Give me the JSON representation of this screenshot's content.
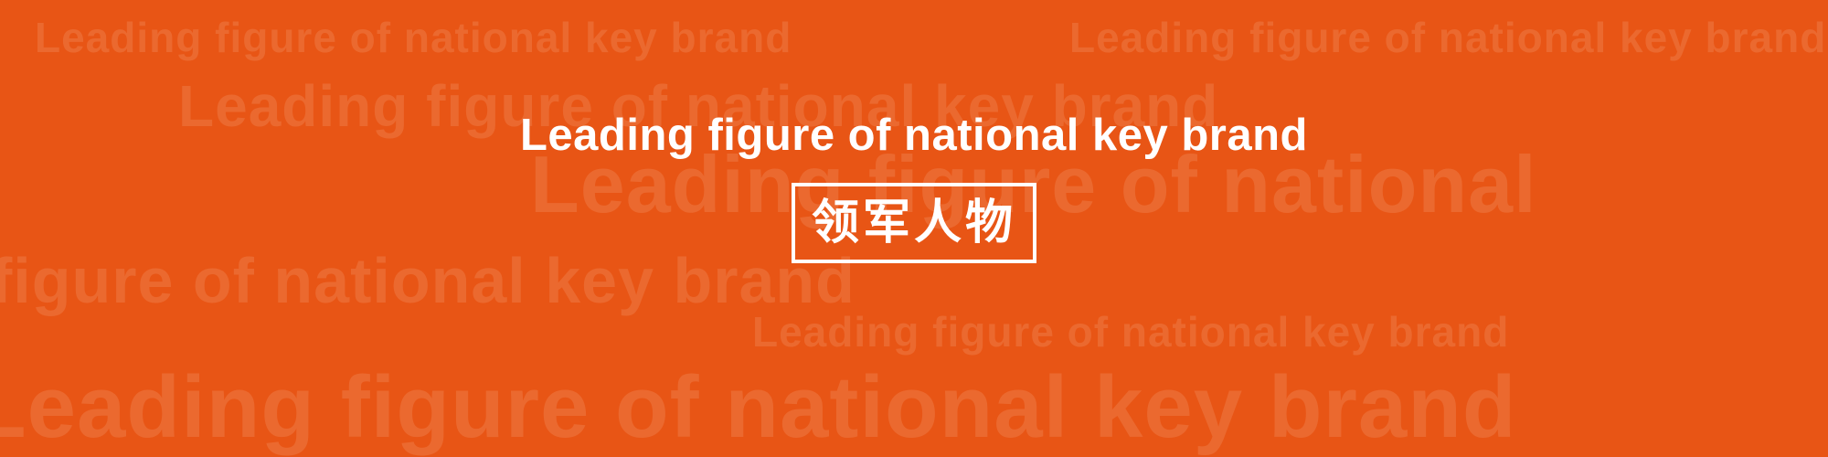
{
  "background_color": "#e85515",
  "background_text": [
    "Leading figure of national key brand",
    "Leading figure of national key brand",
    "Leading figure of national key brand",
    "Leading figure of national",
    "figure of national key brand",
    "Leading figure of national key brand",
    "Leading figure of national key brand"
  ],
  "headline": "Leading figure of national key brand",
  "title_cn": "领军人物"
}
